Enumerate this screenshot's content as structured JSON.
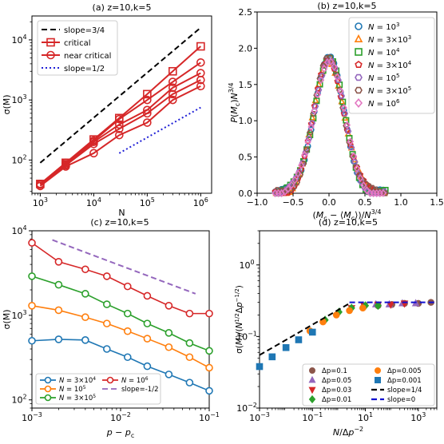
{
  "chart_data": [
    {
      "id": "a",
      "type": "line",
      "title": "(a) z=10,k=5",
      "xlabel": "N",
      "ylabel": "σ(M)",
      "xscale": "log",
      "yscale": "log",
      "xlim": [
        700,
        1600000
      ],
      "ylim": [
        28,
        25000
      ],
      "xticks": [
        {
          "v": 1000,
          "b": "10",
          "e": "3"
        },
        {
          "v": 10000,
          "b": "10",
          "e": "4"
        },
        {
          "v": 100000,
          "b": "10",
          "e": "5"
        },
        {
          "v": 1000000,
          "b": "10",
          "e": "6"
        }
      ],
      "yticks": [
        {
          "v": 100,
          "b": "10",
          "e": "2"
        },
        {
          "v": 1000,
          "b": "10",
          "e": "3"
        },
        {
          "v": 10000,
          "b": "10",
          "e": "4"
        }
      ],
      "legend": {
        "position": "top-left",
        "entries": [
          {
            "label": "slope=3/4",
            "series": "slope34"
          },
          {
            "label": "critical",
            "series": "critical"
          },
          {
            "label": "near critical",
            "series": "near1"
          },
          {
            "label": "slope=1/2",
            "series": "slope12"
          }
        ]
      },
      "series": [
        {
          "key": "slope34",
          "style": "dashed",
          "color": "#000000",
          "marker": "none",
          "x": [
            1000,
            1000000
          ],
          "y": [
            90,
            16000
          ]
        },
        {
          "key": "slope12",
          "style": "dotted",
          "color": "#1f1fd6",
          "marker": "none",
          "x": [
            30000,
            1000000
          ],
          "y": [
            130,
            750
          ]
        },
        {
          "key": "critical",
          "style": "solid",
          "color": "#d62728",
          "marker": "square",
          "x": [
            1000,
            3000,
            10000,
            30000,
            100000,
            300000,
            1000000
          ],
          "y": [
            40,
            90,
            220,
            500,
            1250,
            3000,
            7800
          ]
        },
        {
          "key": "near1",
          "style": "solid",
          "color": "#d62728",
          "marker": "circle",
          "x": [
            1000,
            3000,
            10000,
            30000,
            100000,
            300000,
            1000000
          ],
          "y": [
            40,
            90,
            210,
            480,
            1000,
            2000,
            4200
          ]
        },
        {
          "key": "near2",
          "style": "solid",
          "color": "#d62728",
          "marker": "circle",
          "x": [
            1000,
            3000,
            10000,
            30000,
            100000,
            300000,
            1000000
          ],
          "y": [
            40,
            85,
            200,
            390,
            680,
            1600,
            2800
          ]
        },
        {
          "key": "near3",
          "style": "solid",
          "color": "#d62728",
          "marker": "circle",
          "x": [
            1000,
            3000,
            10000,
            30000,
            100000,
            300000,
            1000000
          ],
          "y": [
            39,
            82,
            185,
            330,
            600,
            1250,
            2150
          ]
        },
        {
          "key": "near4",
          "style": "solid",
          "color": "#d62728",
          "marker": "circle",
          "x": [
            1000,
            3000,
            10000,
            30000,
            100000,
            300000,
            1000000
          ],
          "y": [
            37,
            78,
            130,
            260,
            420,
            1000,
            1700
          ]
        }
      ]
    },
    {
      "id": "b",
      "type": "scatter",
      "title": "(b) z=10,k=5",
      "xlabel": "(M_c − ⟨M_c⟩)/N^{3/4}",
      "ylabel": "P(M_c)N^{3/4}",
      "xscale": "linear",
      "yscale": "linear",
      "xlim": [
        -1.0,
        1.5
      ],
      "ylim": [
        0.0,
        2.5
      ],
      "xticks": [
        {
          "v": -1.0,
          "t": "−1.0"
        },
        {
          "v": -0.5,
          "t": "−0.5"
        },
        {
          "v": 0.0,
          "t": "0.0"
        },
        {
          "v": 0.5,
          "t": "0.5"
        },
        {
          "v": 1.0,
          "t": "1.0"
        },
        {
          "v": 1.5,
          "t": "1.5"
        }
      ],
      "yticks": [
        {
          "v": 0.0,
          "t": "0.0"
        },
        {
          "v": 0.5,
          "t": "0.5"
        },
        {
          "v": 1.0,
          "t": "1.0"
        },
        {
          "v": 1.5,
          "t": "1.5"
        },
        {
          "v": 2.0,
          "t": "2.0"
        },
        {
          "v": 2.5,
          "t": "2.5"
        }
      ],
      "legend": {
        "position": "top-right"
      },
      "distribution": {
        "shape": "gaussian",
        "peak": 1.85,
        "center": 0.0,
        "sigma": 0.21,
        "xrange": [
          -0.75,
          0.8
        ]
      },
      "series": [
        {
          "name": "N = 10^3",
          "label": "N",
          "exp": "3",
          "coef": "",
          "marker": "circle",
          "color": "#1f77b4"
        },
        {
          "name": "N = 3×10^3",
          "label": "N",
          "exp": "3",
          "coef": "3×",
          "marker": "triangle",
          "color": "#ff7f0e"
        },
        {
          "name": "N = 10^4",
          "label": "N",
          "exp": "4",
          "coef": "",
          "marker": "square",
          "color": "#2ca02c"
        },
        {
          "name": "N = 3×10^4",
          "label": "N",
          "exp": "4",
          "coef": "3×",
          "marker": "pentagon",
          "color": "#d62728"
        },
        {
          "name": "N = 10^5",
          "label": "N",
          "exp": "5",
          "coef": "",
          "marker": "hexagon",
          "color": "#9467bd"
        },
        {
          "name": "N = 3×10^5",
          "label": "N",
          "exp": "5",
          "coef": "3×",
          "marker": "hexagon",
          "color": "#8c564b"
        },
        {
          "name": "N = 10^6",
          "label": "N",
          "exp": "6",
          "coef": "",
          "marker": "diamond",
          "color": "#e377c2"
        }
      ]
    },
    {
      "id": "c",
      "type": "line",
      "title": "",
      "xlabel": "p − p_c",
      "ylabel": "σ(M)",
      "xscale": "log",
      "yscale": "log",
      "xlim": [
        0.001,
        0.1
      ],
      "ylim": [
        80,
        10000
      ],
      "xticks": [
        {
          "v": 0.001,
          "b": "10",
          "e": "−3"
        },
        {
          "v": 0.01,
          "b": "10",
          "e": "−2"
        },
        {
          "v": 0.1,
          "b": "10",
          "e": "−1"
        }
      ],
      "yticks": [
        {
          "v": 100,
          "b": "10",
          "e": "2"
        },
        {
          "v": 1000,
          "b": "10",
          "e": "3"
        },
        {
          "v": 10000,
          "b": "10",
          "e": "4"
        }
      ],
      "legend": {
        "position": "bottom-left"
      },
      "series": [
        {
          "key": "n3e4",
          "name": "N = 3×10^4",
          "coef": "3×",
          "exp": "4",
          "color": "#1f77b4",
          "marker": "circle",
          "x": [
            0.001,
            0.002,
            0.004,
            0.007,
            0.012,
            0.02,
            0.035,
            0.06,
            0.1
          ],
          "y": [
            500,
            520,
            510,
            400,
            320,
            250,
            200,
            160,
            128
          ]
        },
        {
          "key": "n1e5",
          "name": "N = 10^5",
          "coef": "",
          "exp": "5",
          "color": "#ff7f0e",
          "marker": "circle",
          "x": [
            0.001,
            0.002,
            0.004,
            0.007,
            0.012,
            0.02,
            0.035,
            0.06,
            0.1
          ],
          "y": [
            1300,
            1150,
            950,
            800,
            650,
            530,
            420,
            320,
            240
          ]
        },
        {
          "key": "n3e5",
          "name": "N = 3×10^5",
          "coef": "3×",
          "exp": "5",
          "color": "#2ca02c",
          "marker": "circle",
          "x": [
            0.001,
            0.002,
            0.004,
            0.007,
            0.012,
            0.02,
            0.035,
            0.06,
            0.1
          ],
          "y": [
            2900,
            2300,
            1800,
            1350,
            1050,
            800,
            620,
            470,
            380
          ]
        },
        {
          "key": "n1e6",
          "name": "N = 10^6",
          "coef": "",
          "exp": "6",
          "color": "#d62728",
          "marker": "circle",
          "x": [
            0.001,
            0.002,
            0.004,
            0.007,
            0.012,
            0.02,
            0.035,
            0.06,
            0.1
          ],
          "y": [
            7200,
            4300,
            3500,
            2900,
            2200,
            1700,
            1300,
            1050,
            1050
          ]
        },
        {
          "key": "slope",
          "name": "slope=-1/2",
          "color": "#9467bd",
          "style": "dashed",
          "marker": "none",
          "x": [
            0.0017,
            0.07
          ],
          "y": [
            7800,
            1800
          ]
        }
      ]
    },
    {
      "id": "d",
      "type": "scatter",
      "title": "(d) z=10,k=5",
      "xlabel": "N/Δp^{-2}",
      "ylabel": "σ(M)/(N^{1/2}Δp^{-1/2})",
      "xscale": "log",
      "yscale": "log",
      "xlim": [
        0.001,
        5000
      ],
      "ylim": [
        0.01,
        3.0
      ],
      "xticks": [
        {
          "v": 0.001,
          "b": "10",
          "e": "−3"
        },
        {
          "v": 0.1,
          "b": "10",
          "e": "−1"
        },
        {
          "v": 10,
          "b": "10",
          "e": "1"
        },
        {
          "v": 1000,
          "b": "10",
          "e": "3"
        }
      ],
      "yticks": [
        {
          "v": 0.01,
          "b": "10",
          "e": "−2"
        },
        {
          "v": 0.1,
          "b": "10",
          "e": "−1"
        },
        {
          "v": 1,
          "b": "10",
          "e": "0"
        }
      ],
      "legend": {
        "position": "bottom-right"
      },
      "series": [
        {
          "name": "Δp=0.1",
          "marker": "circle",
          "color": "#8c564b",
          "x": [
            30,
            100,
            300,
            1000,
            3000
          ],
          "y": [
            0.27,
            0.28,
            0.29,
            0.29,
            0.3
          ]
        },
        {
          "name": "Δp=0.05",
          "marker": "triangle",
          "color": "#9467bd",
          "x": [
            8,
            25,
            80,
            250,
            800
          ],
          "y": [
            0.27,
            0.28,
            0.28,
            0.29,
            0.29
          ]
        },
        {
          "name": "Δp=0.03",
          "marker": "triangle-down",
          "color": "#d62728",
          "x": [
            3,
            9,
            30,
            90,
            300
          ],
          "y": [
            0.25,
            0.27,
            0.28,
            0.28,
            0.29
          ]
        },
        {
          "name": "Δp=0.01",
          "marker": "diamond",
          "color": "#2ca02c",
          "x": [
            0.3,
            1,
            3,
            10,
            30
          ],
          "y": [
            0.17,
            0.22,
            0.25,
            0.27,
            0.27
          ]
        },
        {
          "name": "Δp=0.005",
          "marker": "circle",
          "color": "#ff7f0e",
          "x": [
            0.08,
            0.25,
            0.8,
            2.5,
            8
          ],
          "y": [
            0.12,
            0.16,
            0.2,
            0.23,
            0.25
          ]
        },
        {
          "name": "Δp=0.001",
          "marker": "square",
          "color": "#1f77b4",
          "x": [
            0.001,
            0.003,
            0.01,
            0.03,
            0.1
          ],
          "y": [
            0.038,
            0.052,
            0.07,
            0.09,
            0.115
          ]
        },
        {
          "name": "slope=1/4",
          "style": "dashed",
          "color": "#000000",
          "marker": "none",
          "x": [
            0.001,
            2.5
          ],
          "y": [
            0.055,
            0.29
          ]
        },
        {
          "name": "slope=0",
          "style": "dashed",
          "color": "#1010d0",
          "marker": "none",
          "x": [
            2.5,
            5000
          ],
          "y": [
            0.3,
            0.3
          ]
        }
      ]
    }
  ]
}
